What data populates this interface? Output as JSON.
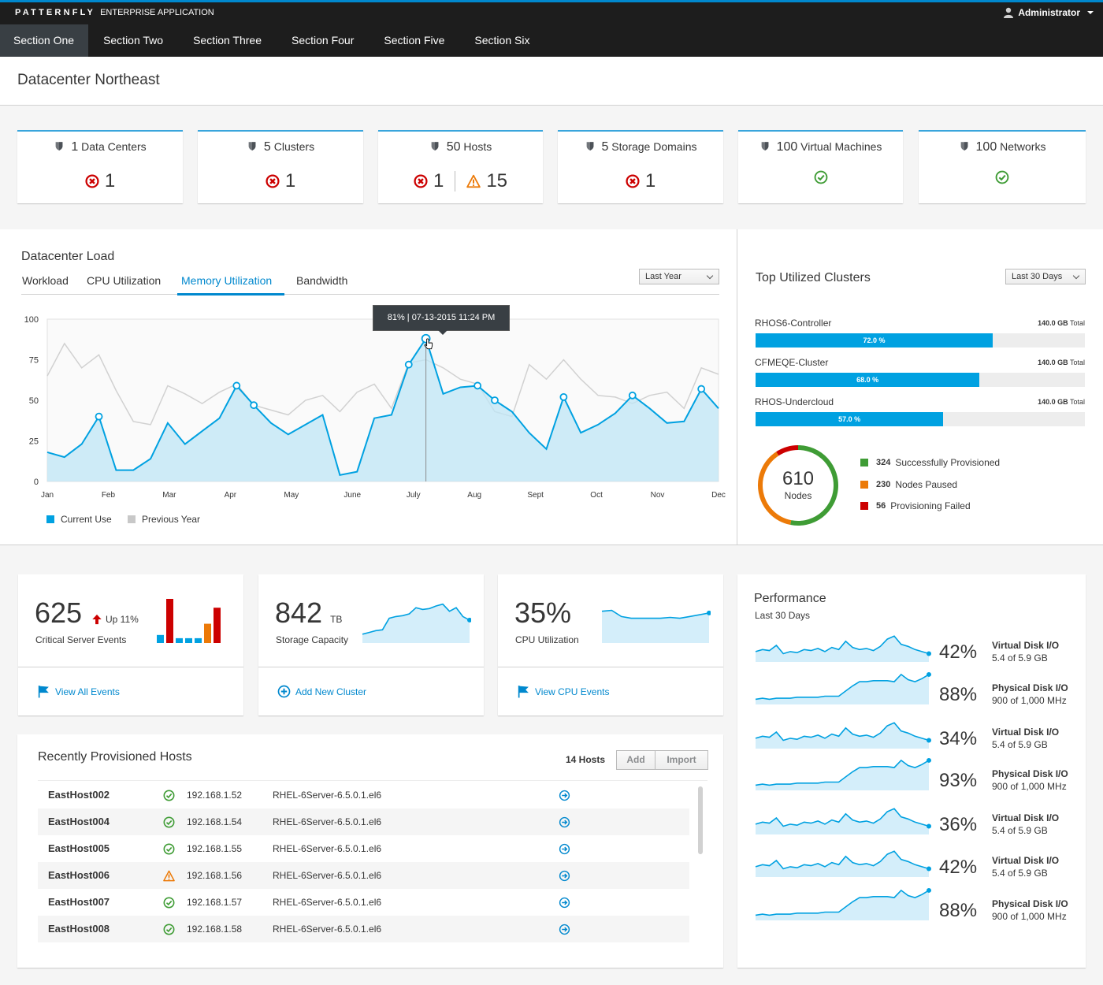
{
  "brand": {
    "name": "PATTERNFLY",
    "subtitle": "ENTERPRISE APPLICATION"
  },
  "user": {
    "name": "Administrator",
    "icon": "user-icon"
  },
  "nav": [
    "Section One",
    "Section Two",
    "Section Three",
    "Section Four",
    "Section Five",
    "Section Six"
  ],
  "page_title": "Datacenter Northeast",
  "aggregates": [
    {
      "count": "1",
      "label": "Data Centers",
      "errors": "1",
      "warnings": null,
      "ok": false
    },
    {
      "count": "5",
      "label": "Clusters",
      "errors": "1",
      "warnings": null,
      "ok": false
    },
    {
      "count": "50",
      "label": "Hosts",
      "errors": "1",
      "warnings": "15",
      "ok": false
    },
    {
      "count": "5",
      "label": "Storage Domains",
      "errors": "1",
      "warnings": null,
      "ok": false
    },
    {
      "count": "100",
      "label": "Virtual Machines",
      "errors": null,
      "warnings": null,
      "ok": true
    },
    {
      "count": "100",
      "label": "Networks",
      "errors": null,
      "warnings": null,
      "ok": true
    }
  ],
  "load": {
    "title": "Datacenter Load",
    "tabs": [
      "Workload",
      "CPU Utilization",
      "Memory Utilization",
      "Bandwidth"
    ],
    "active_tab": "Memory Utilization",
    "range": "Last Year",
    "tooltip": "81% | 07-13-2015 11:24 PM",
    "legend_current": "Current Use",
    "legend_previous": "Previous Year"
  },
  "chart_data": {
    "type": "area",
    "ylim": [
      0,
      100
    ],
    "yticks": [
      "100",
      "75",
      "50",
      "25",
      "0"
    ],
    "xticks": [
      "Jan",
      "Feb",
      "Mar",
      "Apr",
      "May",
      "June",
      "July",
      "Aug",
      "Sept",
      "Oct",
      "Nov",
      "Dec"
    ],
    "series": [
      {
        "name": "Current Use",
        "color": "#00a1e1",
        "values": [
          18,
          15,
          23,
          40,
          7,
          7,
          14,
          36,
          23,
          31,
          39,
          59,
          47,
          36,
          29,
          35,
          41,
          4,
          6,
          39,
          41,
          72,
          88,
          54,
          58,
          59,
          50,
          43,
          30,
          20,
          52,
          30,
          35,
          42,
          53,
          45,
          36,
          37,
          57,
          45
        ],
        "markers": [
          3,
          11,
          12,
          21,
          22,
          25,
          26,
          30,
          34,
          38
        ]
      },
      {
        "name": "Previous Year",
        "color": "#d1d1d1",
        "values": [
          65,
          85,
          70,
          78,
          56,
          37,
          35,
          59,
          54,
          48,
          55,
          60,
          47,
          44,
          41,
          50,
          53,
          43,
          55,
          60,
          45,
          73,
          75,
          70,
          63,
          60,
          43,
          40,
          72,
          63,
          75,
          63,
          53,
          52,
          48,
          53,
          55,
          45,
          70,
          66
        ]
      }
    ]
  },
  "clusters": {
    "title": "Top Utilized Clusters",
    "range": "Last 30 Days",
    "items": [
      {
        "name": "RHOS6-Controller",
        "total": "140.0 GB",
        "total_label": "Total",
        "percent": 72.0,
        "percent_label": "72.0 %"
      },
      {
        "name": "CFMEQE-Cluster",
        "total": "140.0 GB",
        "total_label": "Total",
        "percent": 68.0,
        "percent_label": "68.0 %"
      },
      {
        "name": "RHOS-Undercloud",
        "total": "140.0 GB",
        "total_label": "Total",
        "percent": 57.0,
        "percent_label": "57.0 %"
      }
    ],
    "donut": {
      "total": "610",
      "label": "Nodes",
      "segments": [
        {
          "value": 324,
          "label": "Successfully Provisioned",
          "color": "#3f9c35"
        },
        {
          "value": 230,
          "label": "Nodes Paused",
          "color": "#ec7a08"
        },
        {
          "value": 56,
          "label": "Provisioning Failed",
          "color": "#cc0000"
        }
      ]
    }
  },
  "kpis": [
    {
      "value": "625",
      "unit": "",
      "label": "Critical Server Events",
      "trend": "Up 11%",
      "link": "View All Events",
      "link_icon": "flag-icon",
      "bars": [
        10,
        55,
        6,
        6,
        6,
        24,
        44
      ],
      "bar_colors": [
        "#00a1e1",
        "#cc0000",
        "#00a1e1",
        "#00a1e1",
        "#00a1e1",
        "#ec7a08",
        "#cc0000"
      ]
    },
    {
      "value": "842",
      "unit": "TB",
      "label": "Storage Capacity",
      "link": "Add New Cluster",
      "link_icon": "plus-circle-icon",
      "spark": [
        10,
        12,
        14,
        15,
        28,
        30,
        31,
        33,
        40,
        38,
        39,
        42,
        44,
        36,
        40,
        30,
        26
      ]
    },
    {
      "value": "35%",
      "unit": "",
      "label": "CPU Utilization",
      "link": "View CPU Events",
      "link_icon": "flag-icon",
      "spark": [
        36,
        37,
        30,
        28,
        28,
        28,
        28,
        29,
        28,
        30,
        32,
        34
      ]
    }
  ],
  "hosts": {
    "title": "Recently Provisioned Hosts",
    "count": "14 Hosts",
    "add": "Add",
    "import": "Import",
    "rows": [
      {
        "name": "EastHost002",
        "status": "ok",
        "ip": "192.168.1.52",
        "os": "RHEL-6Server-6.5.0.1.el6"
      },
      {
        "name": "EastHost004",
        "status": "ok",
        "ip": "192.168.1.54",
        "os": "RHEL-6Server-6.5.0.1.el6"
      },
      {
        "name": "EastHost005",
        "status": "ok",
        "ip": "192.168.1.55",
        "os": "RHEL-6Server-6.5.0.1.el6"
      },
      {
        "name": "EastHost006",
        "status": "warning",
        "ip": "192.168.1.56",
        "os": "RHEL-6Server-6.5.0.1.el6"
      },
      {
        "name": "EastHost007",
        "status": "ok",
        "ip": "192.168.1.57",
        "os": "RHEL-6Server-6.5.0.1.el6"
      },
      {
        "name": "EastHost008",
        "status": "ok",
        "ip": "192.168.1.58",
        "os": "RHEL-6Server-6.5.0.1.el6"
      }
    ]
  },
  "performance": {
    "title": "Performance",
    "subtitle": "Last 30 Days",
    "items": [
      {
        "pct": "42%",
        "name": "Virtual Disk I/O",
        "sub": "5.4 of 5.9 GB",
        "shape": "a"
      },
      {
        "pct": "88%",
        "name": "Physical Disk I/O",
        "sub": "900 of 1,000 MHz",
        "shape": "b"
      },
      {
        "pct": "34%",
        "name": "Virtual Disk I/O",
        "sub": "5.4 of 5.9 GB",
        "shape": "a"
      },
      {
        "pct": "93%",
        "name": "Physical Disk I/O",
        "sub": "900 of 1,000 MHz",
        "shape": "b"
      },
      {
        "pct": "36%",
        "name": "Virtual Disk I/O",
        "sub": "5.4 of 5.9 GB",
        "shape": "a"
      },
      {
        "pct": "42%",
        "name": "Virtual Disk I/O",
        "sub": "5.4 of 5.9 GB",
        "shape": "a"
      },
      {
        "pct": "88%",
        "name": "Physical Disk I/O",
        "sub": "900 of 1,000 MHz",
        "shape": "b"
      }
    ]
  }
}
